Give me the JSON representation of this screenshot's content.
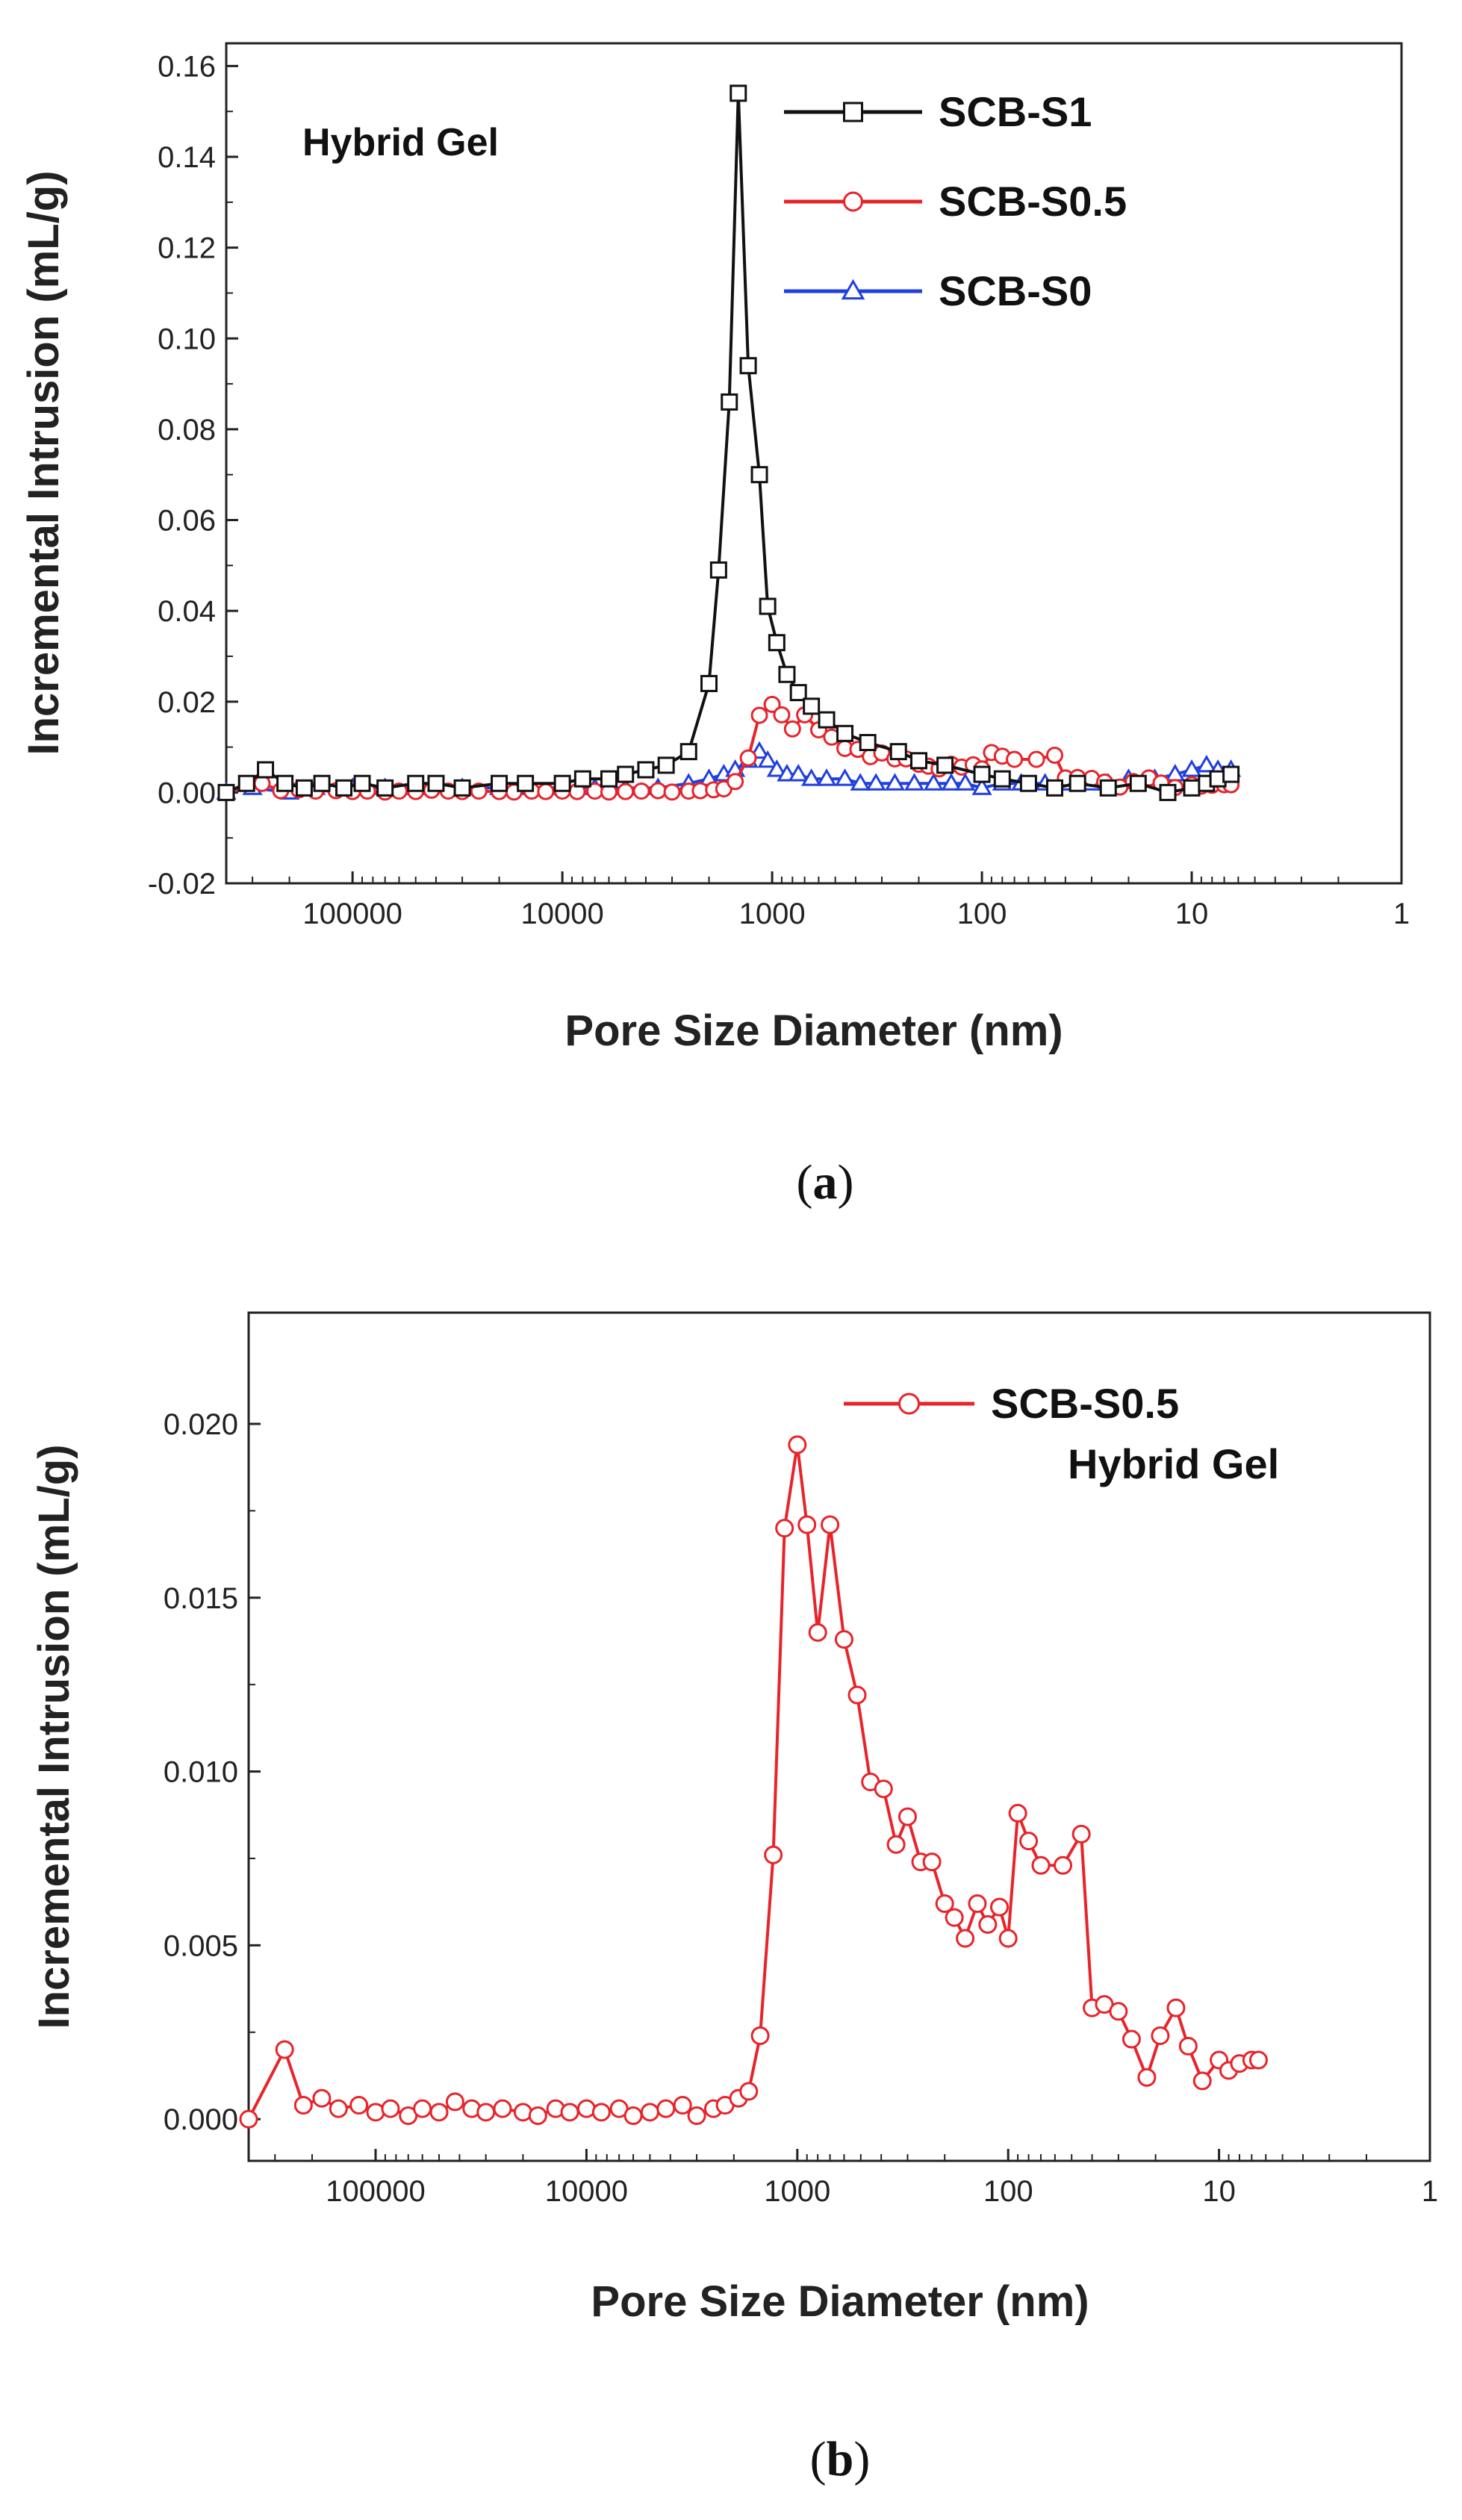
{
  "chart_data": [
    {
      "id": "a",
      "type": "line",
      "caption_prefix": "(",
      "caption_letter": "a",
      "caption_suffix": ")",
      "annotation": "Hybrid Gel",
      "xlabel": "Pore Size Diameter (nm)",
      "ylabel": "Incremental Intrusion (mL/g)",
      "xscale": "log",
      "xreversed": true,
      "xlim": [
        400000,
        1
      ],
      "ylim": [
        -0.02,
        0.165
      ],
      "xticks": [
        100000,
        10000,
        1000,
        100,
        10,
        1
      ],
      "xtick_labels": [
        "100000",
        "10000",
        "1000",
        "100",
        "10",
        "1"
      ],
      "yticks": [
        -0.02,
        0.0,
        0.02,
        0.04,
        0.06,
        0.08,
        0.1,
        0.12,
        0.14,
        0.16
      ],
      "ytick_labels": [
        "-0.02",
        "0.00",
        "0.02",
        "0.04",
        "0.06",
        "0.08",
        "0.10",
        "0.12",
        "0.14",
        "0.16"
      ],
      "legend_position": "top-right",
      "series": [
        {
          "name": "SCB-S1",
          "color": "#111111",
          "marker": "square",
          "x": [
            400000,
            320000,
            260000,
            210000,
            170000,
            140000,
            110000,
            90000,
            70000,
            50000,
            40000,
            30000,
            20000,
            15000,
            10000,
            8000,
            6000,
            5000,
            4000,
            3200,
            2500,
            2000,
            1800,
            1600,
            1450,
            1300,
            1150,
            1050,
            950,
            850,
            750,
            650,
            550,
            450,
            350,
            250,
            200,
            150,
            100,
            80,
            60,
            45,
            35,
            25,
            18,
            13,
            10,
            8.5,
            7.5,
            6.5
          ],
          "y": [
            0.0,
            0.002,
            0.005,
            0.002,
            0.001,
            0.002,
            0.001,
            0.002,
            0.001,
            0.002,
            0.002,
            0.001,
            0.002,
            0.002,
            0.002,
            0.003,
            0.003,
            0.004,
            0.005,
            0.006,
            0.009,
            0.024,
            0.049,
            0.086,
            0.154,
            0.094,
            0.07,
            0.041,
            0.033,
            0.026,
            0.022,
            0.019,
            0.016,
            0.013,
            0.011,
            0.009,
            0.007,
            0.006,
            0.004,
            0.003,
            0.002,
            0.001,
            0.002,
            0.001,
            0.002,
            0.0,
            0.001,
            0.002,
            0.003,
            0.004
          ]
        },
        {
          "name": "SCB-S0.5",
          "color": "#e8242a",
          "marker": "circle",
          "x": [
            400000,
            270000,
            220000,
            180000,
            150000,
            120000,
            100000,
            85000,
            70000,
            60000,
            50000,
            42000,
            35000,
            30000,
            25000,
            20000,
            17000,
            14000,
            12000,
            10000,
            8500,
            7000,
            6000,
            5000,
            4200,
            3500,
            3000,
            2500,
            2200,
            1900,
            1700,
            1500,
            1300,
            1150,
            1000,
            900,
            800,
            700,
            600,
            520,
            450,
            390,
            340,
            300,
            260,
            230,
            200,
            180,
            160,
            140,
            125,
            110,
            100,
            90,
            80,
            70,
            55,
            45,
            40,
            35,
            30,
            26,
            22,
            19,
            16,
            14,
            12,
            10,
            9,
            8,
            7,
            6.5
          ],
          "y": [
            0.0,
            0.002,
            0.0004,
            0.0006,
            0.0003,
            0.0004,
            0.0002,
            0.0003,
            0.0001,
            0.0003,
            0.0002,
            0.0005,
            0.0003,
            0.0002,
            0.0003,
            0.0002,
            0.0001,
            0.0003,
            0.0002,
            0.0003,
            0.0002,
            0.0003,
            0.0001,
            0.0002,
            0.0003,
            0.0004,
            0.0001,
            0.0003,
            0.0004,
            0.0006,
            0.0008,
            0.0024,
            0.0076,
            0.017,
            0.0194,
            0.0171,
            0.014,
            0.0171,
            0.0138,
            0.0122,
            0.0097,
            0.0095,
            0.0079,
            0.0087,
            0.0074,
            0.0074,
            0.0062,
            0.0058,
            0.0052,
            0.0062,
            0.0056,
            0.0061,
            0.0052,
            0.0088,
            0.008,
            0.0073,
            0.0073,
            0.0082,
            0.0032,
            0.0033,
            0.0031,
            0.0023,
            0.0012,
            0.0024,
            0.0032,
            0.0021,
            0.0011,
            0.0017,
            0.0014,
            0.0016,
            0.0017,
            0.0017
          ]
        },
        {
          "name": "SCB-S0",
          "color": "#1f3fe0",
          "marker": "triangle",
          "x": [
            400000,
            300000,
            200000,
            150000,
            100000,
            70000,
            50000,
            30000,
            20000,
            15000,
            10000,
            7000,
            5000,
            3500,
            2500,
            2000,
            1700,
            1500,
            1300,
            1150,
            1050,
            950,
            850,
            750,
            650,
            550,
            450,
            380,
            320,
            260,
            210,
            170,
            140,
            120,
            100,
            80,
            65,
            50,
            40,
            30,
            25,
            20,
            15,
            12,
            10,
            8.5,
            7.5,
            6.5
          ],
          "y": [
            0.0,
            0.001,
            0.0,
            0.001,
            0.001,
            0.001,
            0.001,
            0.001,
            0.001,
            0.001,
            0.001,
            0.001,
            0.001,
            0.001,
            0.002,
            0.003,
            0.004,
            0.005,
            0.007,
            0.009,
            0.007,
            0.005,
            0.004,
            0.004,
            0.003,
            0.003,
            0.003,
            0.002,
            0.002,
            0.002,
            0.002,
            0.002,
            0.002,
            0.002,
            0.001,
            0.002,
            0.002,
            0.002,
            0.002,
            0.002,
            0.002,
            0.003,
            0.003,
            0.004,
            0.005,
            0.006,
            0.005,
            0.005
          ]
        }
      ]
    },
    {
      "id": "b",
      "type": "line",
      "caption_prefix": "(",
      "caption_letter": "b",
      "caption_suffix": ")",
      "annotation": "Hybrid Gel",
      "xlabel": "Pore Size Diameter (nm)",
      "ylabel": "Incremental Intrusion (mL/g)",
      "xscale": "log",
      "xreversed": true,
      "xlim": [
        400000,
        1
      ],
      "ylim": [
        -0.0012,
        0.0232
      ],
      "xticks": [
        100000,
        10000,
        1000,
        100,
        10,
        1
      ],
      "xtick_labels": [
        "100000",
        "10000",
        "1000",
        "100",
        "10",
        "1"
      ],
      "yticks": [
        0.0,
        0.005,
        0.01,
        0.015,
        0.02
      ],
      "ytick_labels": [
        "0.000",
        "0.005",
        "0.010",
        "0.015",
        "0.020"
      ],
      "legend_position": "top-right",
      "series": [
        {
          "name": "SCB-S0.5",
          "color": "#e8242a",
          "marker": "circle",
          "x": [
            400000,
            270000,
            220000,
            180000,
            150000,
            120000,
            100000,
            85000,
            70000,
            60000,
            50000,
            42000,
            35000,
            30000,
            25000,
            20000,
            17000,
            14000,
            12000,
            10000,
            8500,
            7000,
            6000,
            5000,
            4200,
            3500,
            3000,
            2500,
            2200,
            1900,
            1700,
            1500,
            1300,
            1150,
            1000,
            900,
            800,
            700,
            600,
            520,
            450,
            390,
            340,
            300,
            260,
            230,
            200,
            180,
            160,
            140,
            125,
            110,
            100,
            90,
            80,
            70,
            55,
            45,
            40,
            35,
            30,
            26,
            22,
            19,
            16,
            14,
            12,
            10,
            9,
            8,
            7,
            6.5
          ],
          "y": [
            0.0,
            0.002,
            0.0004,
            0.0006,
            0.0003,
            0.0004,
            0.0002,
            0.0003,
            0.0001,
            0.0003,
            0.0002,
            0.0005,
            0.0003,
            0.0002,
            0.0003,
            0.0002,
            0.0001,
            0.0003,
            0.0002,
            0.0003,
            0.0002,
            0.0003,
            0.0001,
            0.0002,
            0.0003,
            0.0004,
            0.0001,
            0.0003,
            0.0004,
            0.0006,
            0.0008,
            0.0024,
            0.0076,
            0.017,
            0.0194,
            0.0171,
            0.014,
            0.0171,
            0.0138,
            0.0122,
            0.0097,
            0.0095,
            0.0079,
            0.0087,
            0.0074,
            0.0074,
            0.0062,
            0.0058,
            0.0052,
            0.0062,
            0.0056,
            0.0061,
            0.0052,
            0.0088,
            0.008,
            0.0073,
            0.0073,
            0.0082,
            0.0032,
            0.0033,
            0.0031,
            0.0023,
            0.0012,
            0.0024,
            0.0032,
            0.0021,
            0.0011,
            0.0017,
            0.0014,
            0.0016,
            0.0017,
            0.0017
          ]
        }
      ]
    }
  ]
}
